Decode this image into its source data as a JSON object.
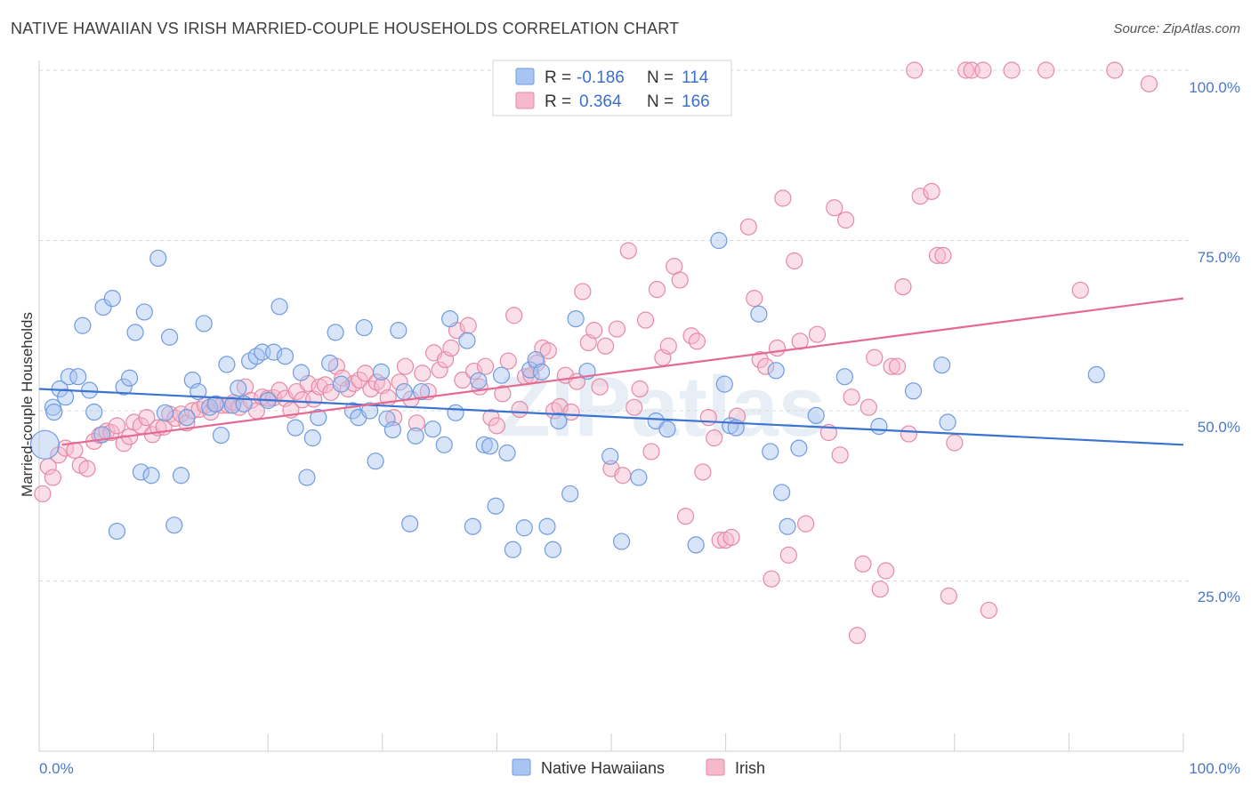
{
  "header": {
    "title": "NATIVE HAWAIIAN VS IRISH MARRIED-COUPLE HOUSEHOLDS CORRELATION CHART",
    "source": "Source: ZipAtlas.com"
  },
  "watermark": "ZIPatlas",
  "legend": {
    "rows": [
      {
        "r_label": "R =",
        "r_value": "-0.186",
        "n_label": "N =",
        "n_value": "114",
        "color": "#a8c4f0",
        "stroke": "#6f9be0"
      },
      {
        "r_label": "R =",
        "r_value": "0.364",
        "n_label": "N =",
        "n_value": "166",
        "color": "#f6b8cb",
        "stroke": "#e58aa6"
      }
    ]
  },
  "bottom_legend": [
    {
      "label": "Native Hawaiians",
      "color": "#a8c4f0",
      "stroke": "#6f9be0"
    },
    {
      "label": "Irish",
      "color": "#f6b8cb",
      "stroke": "#e58aa6"
    }
  ],
  "chart_data": {
    "type": "scatter",
    "title": "NATIVE HAWAIIAN VS IRISH MARRIED-COUPLE HOUSEHOLDS CORRELATION CHART",
    "xlabel": "",
    "ylabel": "Married-couple Households",
    "xlim": [
      0,
      100
    ],
    "ylim": [
      0,
      100
    ],
    "x_tick_labels": [
      "0.0%",
      "100.0%"
    ],
    "y_tick_labels": [
      "25.0%",
      "50.0%",
      "75.0%",
      "100.0%"
    ],
    "y_ticks": [
      25,
      50,
      75,
      100
    ],
    "grid": "horizontal dashed",
    "legend_position": "top-center",
    "colors": {
      "blue": "#3a74d0",
      "pink": "#e46a92"
    },
    "series": [
      {
        "name": "Native Hawaiians",
        "R": -0.186,
        "N": 114,
        "trend": {
          "x": [
            0,
            100
          ],
          "y": [
            53.2,
            45.0
          ]
        },
        "points": [
          [
            0.5,
            45
          ],
          [
            1.2,
            50.5
          ],
          [
            1.3,
            49.8
          ],
          [
            1.8,
            53.2
          ],
          [
            2.3,
            52
          ],
          [
            2.6,
            55
          ],
          [
            3.4,
            55
          ],
          [
            3.8,
            62.5
          ],
          [
            4.4,
            53
          ],
          [
            4.8,
            49.8
          ],
          [
            5.5,
            46.5
          ],
          [
            5.6,
            65.2
          ],
          [
            6.4,
            66.5
          ],
          [
            6.8,
            32.3
          ],
          [
            7.4,
            53.5
          ],
          [
            7.9,
            54.8
          ],
          [
            8.4,
            61.5
          ],
          [
            8.9,
            41
          ],
          [
            9.2,
            64.5
          ],
          [
            9.8,
            40.5
          ],
          [
            10.4,
            72.4
          ],
          [
            11,
            49.7
          ],
          [
            11.4,
            60.8
          ],
          [
            11.8,
            33.2
          ],
          [
            12.4,
            40.5
          ],
          [
            12.9,
            49
          ],
          [
            13.4,
            54.5
          ],
          [
            13.9,
            52.8
          ],
          [
            14.4,
            62.8
          ],
          [
            14.9,
            50.5
          ],
          [
            15.4,
            51
          ],
          [
            15.9,
            46.4
          ],
          [
            16.4,
            56.8
          ],
          [
            16.9,
            50.8
          ],
          [
            17.4,
            53.3
          ],
          [
            17.9,
            51
          ],
          [
            18.4,
            57.3
          ],
          [
            19,
            58
          ],
          [
            19.5,
            58.6
          ],
          [
            20,
            51.5
          ],
          [
            20.5,
            58.6
          ],
          [
            21,
            65.3
          ],
          [
            21.5,
            58
          ],
          [
            22.4,
            47.5
          ],
          [
            22.9,
            55.6
          ],
          [
            23.4,
            40.2
          ],
          [
            23.9,
            46
          ],
          [
            24.4,
            49
          ],
          [
            25.4,
            57
          ],
          [
            25.9,
            61.5
          ],
          [
            26.4,
            53.9
          ],
          [
            27.4,
            50
          ],
          [
            27.9,
            49
          ],
          [
            28.4,
            62.2
          ],
          [
            28.9,
            50
          ],
          [
            29.4,
            42.6
          ],
          [
            29.9,
            55.7
          ],
          [
            30.4,
            48.8
          ],
          [
            30.9,
            47.2
          ],
          [
            31.4,
            61.8
          ],
          [
            31.9,
            52.8
          ],
          [
            32.4,
            33.4
          ],
          [
            32.9,
            46.3
          ],
          [
            33.4,
            52.8
          ],
          [
            34.4,
            47.3
          ],
          [
            35.4,
            45
          ],
          [
            35.9,
            63.5
          ],
          [
            36.4,
            49.7
          ],
          [
            37.4,
            60.3
          ],
          [
            37.9,
            33
          ],
          [
            38.4,
            54.4
          ],
          [
            38.9,
            45
          ],
          [
            39.4,
            44.8
          ],
          [
            39.9,
            36
          ],
          [
            40.4,
            55.2
          ],
          [
            40.9,
            43.8
          ],
          [
            41.4,
            29.6
          ],
          [
            42.4,
            32.8
          ],
          [
            42.9,
            56
          ],
          [
            43.4,
            57.5
          ],
          [
            43.9,
            55.7
          ],
          [
            44.4,
            33
          ],
          [
            44.9,
            29.6
          ],
          [
            45.4,
            48.5
          ],
          [
            46.4,
            37.8
          ],
          [
            46.9,
            63.5
          ],
          [
            47.9,
            55.8
          ],
          [
            49.9,
            43.3
          ],
          [
            50.9,
            30.8
          ],
          [
            52.4,
            40.2
          ],
          [
            53.9,
            48.5
          ],
          [
            54.9,
            47.3
          ],
          [
            57.4,
            30.3
          ],
          [
            59.4,
            75
          ],
          [
            59.9,
            53.9
          ],
          [
            60.4,
            47.8
          ],
          [
            60.9,
            47.5
          ],
          [
            62.9,
            64.2
          ],
          [
            63.9,
            44
          ],
          [
            64.4,
            55.9
          ],
          [
            64.9,
            38
          ],
          [
            65.4,
            33
          ],
          [
            66.4,
            44.5
          ],
          [
            67.9,
            49.3
          ],
          [
            70.4,
            55
          ],
          [
            73.4,
            47.7
          ],
          [
            76.4,
            52.9
          ],
          [
            78.9,
            56.7
          ],
          [
            79.4,
            48.3
          ],
          [
            92.4,
            55.3
          ]
        ]
      },
      {
        "name": "Irish",
        "R": 0.364,
        "N": 166,
        "trend": {
          "x": [
            2,
            100
          ],
          "y": [
            45.0,
            66.5
          ]
        },
        "points": [
          [
            0.3,
            37.8
          ],
          [
            0.8,
            41.8
          ],
          [
            1.2,
            40.2
          ],
          [
            1.7,
            43.5
          ],
          [
            2.3,
            44.5
          ],
          [
            3.1,
            44.2
          ],
          [
            3.6,
            42
          ],
          [
            4.2,
            41.5
          ],
          [
            4.8,
            45.5
          ],
          [
            5.3,
            46.4
          ],
          [
            5.9,
            47
          ],
          [
            6.3,
            46.8
          ],
          [
            6.8,
            47.8
          ],
          [
            7.4,
            45.2
          ],
          [
            7.9,
            46.2
          ],
          [
            8.3,
            48.3
          ],
          [
            8.9,
            47.8
          ],
          [
            9.4,
            49
          ],
          [
            9.9,
            46.5
          ],
          [
            10.4,
            47.5
          ],
          [
            10.9,
            47.6
          ],
          [
            11.4,
            49.5
          ],
          [
            11.9,
            48.9
          ],
          [
            12.4,
            49.5
          ],
          [
            12.9,
            48.2
          ],
          [
            13.4,
            50
          ],
          [
            14,
            50.2
          ],
          [
            14.5,
            50.8
          ],
          [
            15,
            49.8
          ],
          [
            15.5,
            51
          ],
          [
            16,
            50.8
          ],
          [
            16.5,
            50.8
          ],
          [
            17,
            51.2
          ],
          [
            17.5,
            50.5
          ],
          [
            18,
            53.5
          ],
          [
            18.5,
            51.5
          ],
          [
            19,
            50
          ],
          [
            19.5,
            52
          ],
          [
            20,
            51.8
          ],
          [
            20.5,
            51.9
          ],
          [
            21,
            53
          ],
          [
            21.5,
            51.8
          ],
          [
            22,
            50.1
          ],
          [
            22.5,
            52.8
          ],
          [
            23,
            51.6
          ],
          [
            23.5,
            54
          ],
          [
            24,
            51.7
          ],
          [
            24.5,
            53.5
          ],
          [
            25,
            53.8
          ],
          [
            25.5,
            52.7
          ],
          [
            26,
            56.5
          ],
          [
            26.5,
            54.8
          ],
          [
            27,
            53.2
          ],
          [
            27.5,
            54
          ],
          [
            28,
            54.5
          ],
          [
            28.5,
            55.5
          ],
          [
            29,
            53.2
          ],
          [
            29.5,
            54.2
          ],
          [
            30,
            53.7
          ],
          [
            30.5,
            51.9
          ],
          [
            31,
            49
          ],
          [
            31.5,
            54.2
          ],
          [
            32,
            56.5
          ],
          [
            32.5,
            51.7
          ],
          [
            33,
            48.2
          ],
          [
            33.5,
            55.5
          ],
          [
            34,
            52.8
          ],
          [
            34.5,
            58.5
          ],
          [
            35,
            56
          ],
          [
            35.5,
            57.5
          ],
          [
            36,
            59.2
          ],
          [
            36.5,
            61.8
          ],
          [
            37,
            54.5
          ],
          [
            37.5,
            62.5
          ],
          [
            38,
            55.8
          ],
          [
            38.5,
            53.5
          ],
          [
            39,
            56.5
          ],
          [
            39.5,
            49
          ],
          [
            40,
            47.8
          ],
          [
            40.5,
            52.5
          ],
          [
            41,
            57.3
          ],
          [
            41.5,
            64
          ],
          [
            42,
            50.2
          ],
          [
            42.5,
            55
          ],
          [
            43,
            55.2
          ],
          [
            43.5,
            57
          ],
          [
            44,
            59.2
          ],
          [
            44.5,
            58.8
          ],
          [
            45,
            50
          ],
          [
            45.5,
            50.6
          ],
          [
            46,
            55.2
          ],
          [
            46.5,
            49.8
          ],
          [
            47,
            54.3
          ],
          [
            47.5,
            67.5
          ],
          [
            48,
            60
          ],
          [
            48.5,
            61.8
          ],
          [
            49,
            53.5
          ],
          [
            49.5,
            59.5
          ],
          [
            50,
            41.5
          ],
          [
            50.5,
            62
          ],
          [
            51,
            40.5
          ],
          [
            51.5,
            73.5
          ],
          [
            52,
            50.5
          ],
          [
            52.5,
            53.2
          ],
          [
            53,
            63.3
          ],
          [
            53.5,
            44
          ],
          [
            54,
            67.8
          ],
          [
            54.5,
            57.8
          ],
          [
            55,
            59.5
          ],
          [
            55.5,
            71.2
          ],
          [
            56,
            69.2
          ],
          [
            56.5,
            34.5
          ],
          [
            57,
            61
          ],
          [
            57.5,
            60.2
          ],
          [
            58,
            41
          ],
          [
            58.5,
            49
          ],
          [
            59,
            46
          ],
          [
            59.5,
            31
          ],
          [
            60,
            31
          ],
          [
            60.5,
            31.4
          ],
          [
            61,
            49.2
          ],
          [
            62,
            77
          ],
          [
            62.5,
            66.5
          ],
          [
            63,
            57.5
          ],
          [
            63.5,
            56.5
          ],
          [
            64,
            25.3
          ],
          [
            64.5,
            59.2
          ],
          [
            65,
            81.2
          ],
          [
            65.5,
            28.8
          ],
          [
            66,
            72
          ],
          [
            66.5,
            60.2
          ],
          [
            67,
            33.4
          ],
          [
            68,
            61.2
          ],
          [
            69,
            46.8
          ],
          [
            69.5,
            79.8
          ],
          [
            70,
            43.5
          ],
          [
            70.5,
            78
          ],
          [
            71,
            52
          ],
          [
            71.5,
            17
          ],
          [
            72,
            27.5
          ],
          [
            72.5,
            50.5
          ],
          [
            73,
            57.8
          ],
          [
            73.5,
            23.8
          ],
          [
            74,
            26.5
          ],
          [
            74.5,
            56.5
          ],
          [
            75,
            56.5
          ],
          [
            75.5,
            68.2
          ],
          [
            76,
            46.6
          ],
          [
            76.5,
            100
          ],
          [
            77,
            81.5
          ],
          [
            78,
            82.2
          ],
          [
            78.5,
            72.8
          ],
          [
            79,
            72.8
          ],
          [
            79.5,
            22.8
          ],
          [
            80,
            45.3
          ],
          [
            81,
            100
          ],
          [
            81.5,
            100
          ],
          [
            82.5,
            100
          ],
          [
            83,
            20.7
          ],
          [
            85,
            100
          ],
          [
            88,
            100
          ],
          [
            91,
            67.7
          ],
          [
            94,
            100
          ],
          [
            97,
            98
          ]
        ]
      }
    ]
  }
}
